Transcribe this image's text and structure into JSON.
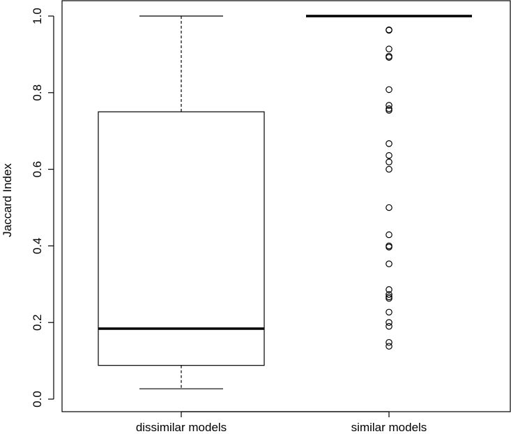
{
  "chart_data": {
    "type": "boxplot",
    "title": "",
    "xlabel": "",
    "ylabel": "Jaccard Index",
    "ylim": [
      0.0,
      1.0
    ],
    "yticks": [
      "0.0",
      "0.2",
      "0.4",
      "0.6",
      "0.8",
      "1.0"
    ],
    "categories": [
      "dissimilar models",
      "similar models"
    ],
    "boxes": [
      {
        "name": "dissimilar models",
        "whisker_low": 0.027,
        "q1": 0.088,
        "median": 0.184,
        "q3": 0.75,
        "whisker_high": 1.0,
        "outliers": []
      },
      {
        "name": "similar models",
        "whisker_low": 1.0,
        "q1": 1.0,
        "median": 1.0,
        "q3": 1.0,
        "whisker_high": 1.0,
        "outliers": [
          0.964,
          0.963,
          0.914,
          0.895,
          0.892,
          0.808,
          0.767,
          0.758,
          0.754,
          0.667,
          0.636,
          0.619,
          0.6,
          0.5,
          0.429,
          0.4,
          0.397,
          0.353,
          0.286,
          0.273,
          0.267,
          0.263,
          0.227,
          0.2,
          0.19,
          0.148,
          0.138
        ]
      }
    ],
    "grid": false,
    "legend": "none"
  }
}
